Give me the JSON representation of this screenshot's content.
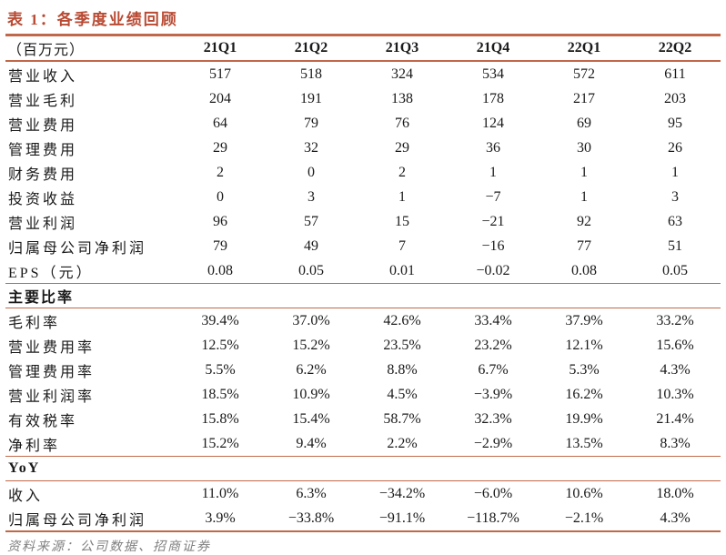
{
  "title": "表 1：各季度业绩回顾",
  "colors": {
    "accent_rule": "#c2684a",
    "title_text": "#b94a33",
    "body_text": "#1a1a1a",
    "source_text": "#808080"
  },
  "table": {
    "columns": [
      "（百万元）",
      "21Q1",
      "21Q2",
      "21Q3",
      "21Q4",
      "22Q1",
      "22Q2"
    ],
    "sections": [
      {
        "header": null,
        "rows": [
          {
            "label": "营业收入",
            "values": [
              "517",
              "518",
              "324",
              "534",
              "572",
              "611"
            ]
          },
          {
            "label": "营业毛利",
            "values": [
              "204",
              "191",
              "138",
              "178",
              "217",
              "203"
            ]
          },
          {
            "label": "营业费用",
            "values": [
              "64",
              "79",
              "76",
              "124",
              "69",
              "95"
            ]
          },
          {
            "label": "管理费用",
            "values": [
              "29",
              "32",
              "29",
              "36",
              "30",
              "26"
            ]
          },
          {
            "label": "财务费用",
            "values": [
              "2",
              "0",
              "2",
              "1",
              "1",
              "1"
            ]
          },
          {
            "label": "投资收益",
            "values": [
              "0",
              "3",
              "1",
              "−7",
              "1",
              "3"
            ]
          },
          {
            "label": "营业利润",
            "values": [
              "96",
              "57",
              "15",
              "−21",
              "92",
              "63"
            ]
          },
          {
            "label": "归属母公司净利润",
            "values": [
              "79",
              "49",
              "7",
              "−16",
              "77",
              "51"
            ]
          },
          {
            "label": "EPS（元）",
            "values": [
              "0.08",
              "0.05",
              "0.01",
              "−0.02",
              "0.08",
              "0.05"
            ]
          }
        ]
      },
      {
        "header": "主要比率",
        "rows": [
          {
            "label": "毛利率",
            "values": [
              "39.4%",
              "37.0%",
              "42.6%",
              "33.4%",
              "37.9%",
              "33.2%"
            ]
          },
          {
            "label": "营业费用率",
            "values": [
              "12.5%",
              "15.2%",
              "23.5%",
              "23.2%",
              "12.1%",
              "15.6%"
            ]
          },
          {
            "label": "管理费用率",
            "values": [
              "5.5%",
              "6.2%",
              "8.8%",
              "6.7%",
              "5.3%",
              "4.3%"
            ]
          },
          {
            "label": "营业利润率",
            "values": [
              "18.5%",
              "10.9%",
              "4.5%",
              "−3.9%",
              "16.2%",
              "10.3%"
            ]
          },
          {
            "label": "有效税率",
            "values": [
              "15.8%",
              "15.4%",
              "58.7%",
              "32.3%",
              "19.9%",
              "21.4%"
            ]
          },
          {
            "label": "净利率",
            "values": [
              "15.2%",
              "9.4%",
              "2.2%",
              "−2.9%",
              "13.5%",
              "8.3%"
            ]
          }
        ]
      },
      {
        "header": "YoY",
        "rows": [
          {
            "label": "收入",
            "values": [
              "11.0%",
              "6.3%",
              "−34.2%",
              "−6.0%",
              "10.6%",
              "18.0%"
            ]
          },
          {
            "label": "归属母公司净利润",
            "values": [
              "3.9%",
              "−33.8%",
              "−91.1%",
              "−118.7%",
              "−2.1%",
              "4.3%"
            ]
          }
        ]
      }
    ]
  },
  "source_note": "资料来源：公司数据、招商证券"
}
